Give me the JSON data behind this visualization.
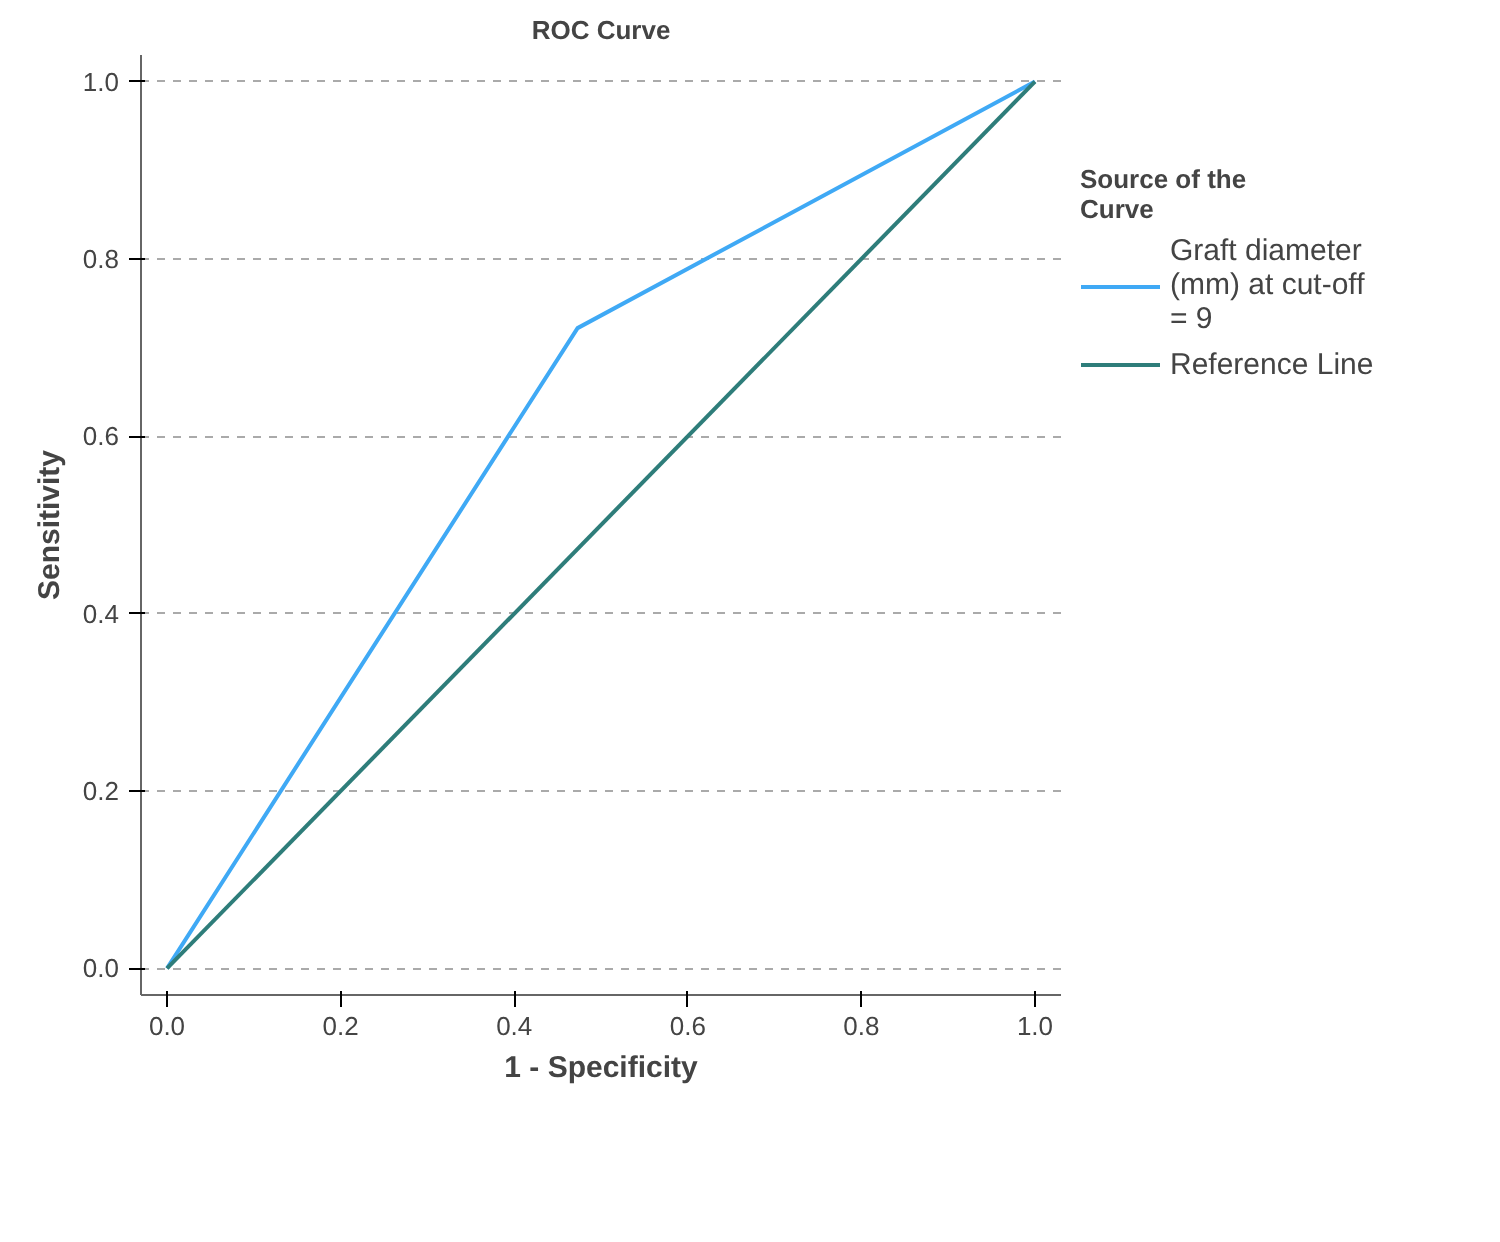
{
  "chart_data": {
    "type": "line",
    "title": "ROC Curve",
    "xlabel": "1 - Specificity",
    "ylabel": "Sensitivity",
    "legend_title": "Source of the Curve",
    "series": [
      {
        "name": "Graft diameter (mm) at cut-off = 9",
        "color": "#3fa9f5",
        "x": [
          0,
          0.473,
          1
        ],
        "values": [
          0,
          0.722,
          1
        ]
      },
      {
        "name": "Reference Line",
        "color": "#2e7d7a",
        "x": [
          0,
          1
        ],
        "values": [
          0,
          1
        ]
      }
    ],
    "xlim": [
      -0.03,
      1.03
    ],
    "ylim": [
      -0.03,
      1.03
    ],
    "xticks": [
      {
        "value": 0,
        "label": "0.0"
      },
      {
        "value": 0.2,
        "label": "0.2"
      },
      {
        "value": 0.4,
        "label": "0.4"
      },
      {
        "value": 0.6,
        "label": "0.6"
      },
      {
        "value": 0.8,
        "label": "0.8"
      },
      {
        "value": 1,
        "label": "1.0"
      }
    ],
    "yticks": [
      {
        "value": 0,
        "label": "0.0"
      },
      {
        "value": 0.2,
        "label": "0.2"
      },
      {
        "value": 0.4,
        "label": "0.4"
      },
      {
        "value": 0.6,
        "label": "0.6"
      },
      {
        "value": 0.8,
        "label": "0.8"
      },
      {
        "value": 1,
        "label": "1.0"
      }
    ],
    "grid": "y",
    "legend": "right",
    "line_style": "solid",
    "marker": "none"
  }
}
